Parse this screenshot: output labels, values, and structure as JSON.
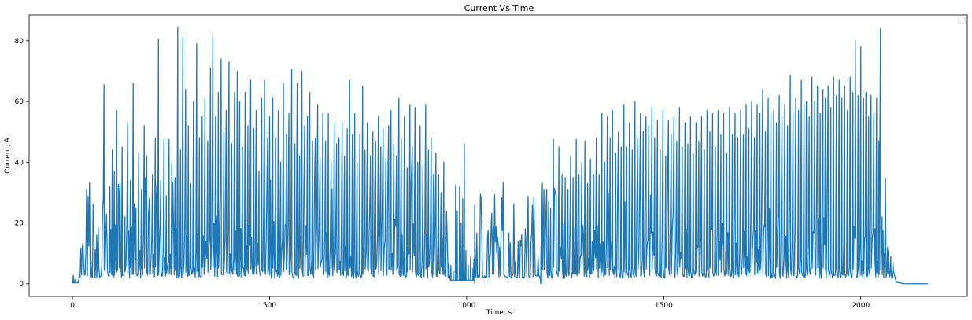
{
  "chart_data": {
    "type": "line",
    "title": "Current Vs Time",
    "xlabel": "Time, s",
    "ylabel": "Current, A",
    "xlim": [
      -110,
      2270
    ],
    "ylim": [
      -4.2,
      88.5
    ],
    "xticks": [
      0,
      500,
      1000,
      1500,
      2000
    ],
    "yticks": [
      0,
      20,
      40,
      60,
      80
    ],
    "grid": false,
    "legend": {
      "placement": "top-right",
      "entries": []
    },
    "series": [
      {
        "color": "#1f77b4",
        "segments": [
          {
            "x_start": 0,
            "x_end": 80,
            "pattern": "idle-small",
            "baseline": 0.3
          },
          {
            "x_start": 80,
            "x_end": 960,
            "pattern": "dense-spikes",
            "baseline": 2.5,
            "mid_band": [
              2,
              20
            ]
          },
          {
            "x_start": 960,
            "x_end": 1020,
            "pattern": "taper",
            "baseline": 1.0
          },
          {
            "x_start": 1020,
            "x_end": 1188,
            "pattern": "flat",
            "baseline": 0.0
          },
          {
            "x_start": 1188,
            "x_end": 2085,
            "pattern": "dense-spikes",
            "baseline": 2.5,
            "mid_band": [
              2,
              20
            ]
          },
          {
            "x_start": 2085,
            "x_end": 2170,
            "pattern": "flat",
            "baseline": 0.0
          }
        ],
        "peaks": [
          [
            2,
            2.8
          ],
          [
            6,
            1.5
          ],
          [
            15,
            1.2
          ],
          [
            80,
            65.5
          ],
          [
            82,
            18.5
          ],
          [
            88,
            12
          ],
          [
            95,
            32
          ],
          [
            101,
            44
          ],
          [
            106,
            37
          ],
          [
            112,
            57
          ],
          [
            118,
            29
          ],
          [
            126,
            45
          ],
          [
            133,
            22
          ],
          [
            140,
            53
          ],
          [
            147,
            34
          ],
          [
            154,
            66
          ],
          [
            161,
            25
          ],
          [
            168,
            43
          ],
          [
            175,
            31
          ],
          [
            182,
            52
          ],
          [
            188,
            42
          ],
          [
            195,
            28
          ],
          [
            203,
            36
          ],
          [
            210,
            48
          ],
          [
            218,
            80.5
          ],
          [
            224,
            34
          ],
          [
            232,
            47.5
          ],
          [
            238,
            29
          ],
          [
            245,
            47.5
          ],
          [
            252,
            40
          ],
          [
            260,
            35
          ],
          [
            267,
            84.5
          ],
          [
            274,
            44
          ],
          [
            280,
            81
          ],
          [
            287,
            64
          ],
          [
            294,
            52
          ],
          [
            300,
            33
          ],
          [
            307,
            60
          ],
          [
            315,
            79
          ],
          [
            322,
            48
          ],
          [
            329,
            55
          ],
          [
            336,
            61
          ],
          [
            343,
            47
          ],
          [
            350,
            71
          ],
          [
            356,
            81.5
          ],
          [
            363,
            55
          ],
          [
            370,
            63
          ],
          [
            377,
            74
          ],
          [
            384,
            50
          ],
          [
            390,
            57
          ],
          [
            397,
            73
          ],
          [
            404,
            46
          ],
          [
            411,
            63
          ],
          [
            418,
            70
          ],
          [
            424,
            60
          ],
          [
            431,
            45
          ],
          [
            438,
            63
          ],
          [
            445,
            52
          ],
          [
            452,
            67
          ],
          [
            460,
            51
          ],
          [
            466,
            57
          ],
          [
            473,
            37
          ],
          [
            480,
            61
          ],
          [
            487,
            67
          ],
          [
            495,
            48
          ],
          [
            500,
            55
          ],
          [
            508,
            61
          ],
          [
            515,
            48
          ],
          [
            522,
            57
          ],
          [
            528,
            40
          ],
          [
            535,
            66
          ],
          [
            543,
            49
          ],
          [
            549,
            56
          ],
          [
            556,
            70.5
          ],
          [
            564,
            46
          ],
          [
            570,
            66
          ],
          [
            576,
            42
          ],
          [
            582,
            70
          ],
          [
            589,
            52
          ],
          [
            596,
            55
          ],
          [
            602,
            63
          ],
          [
            609,
            47
          ],
          [
            616,
            48
          ],
          [
            622,
            59
          ],
          [
            628,
            41
          ],
          [
            635,
            56
          ],
          [
            642,
            47
          ],
          [
            649,
            56
          ],
          [
            656,
            40
          ],
          [
            664,
            53
          ],
          [
            670,
            46
          ],
          [
            676,
            48
          ],
          [
            684,
            53
          ],
          [
            690,
            42
          ],
          [
            697,
            51
          ],
          [
            703,
            67
          ],
          [
            710,
            49
          ],
          [
            716,
            56
          ],
          [
            722,
            40
          ],
          [
            729,
            49
          ],
          [
            736,
            65
          ],
          [
            742,
            44
          ],
          [
            748,
            53
          ],
          [
            756,
            42
          ],
          [
            762,
            50
          ],
          [
            769,
            47
          ],
          [
            776,
            55
          ],
          [
            782,
            45
          ],
          [
            788,
            51
          ],
          [
            795,
            41
          ],
          [
            802,
            52
          ],
          [
            808,
            57
          ],
          [
            815,
            46
          ],
          [
            822,
            42
          ],
          [
            828,
            61
          ],
          [
            834,
            48
          ],
          [
            842,
            55
          ],
          [
            849,
            38
          ],
          [
            856,
            59
          ],
          [
            862,
            45
          ],
          [
            869,
            58
          ],
          [
            876,
            40
          ],
          [
            882,
            52
          ],
          [
            889,
            38
          ],
          [
            896,
            59
          ],
          [
            903,
            44
          ],
          [
            910,
            48
          ],
          [
            916,
            36
          ],
          [
            922,
            43
          ],
          [
            929,
            36
          ],
          [
            935,
            30
          ],
          [
            942,
            40
          ],
          [
            955,
            7
          ],
          [
            960,
            6
          ],
          [
            966,
            4
          ],
          [
            972,
            32.5
          ],
          [
            976,
            24
          ],
          [
            982,
            32
          ],
          [
            986,
            20
          ],
          [
            990,
            28
          ],
          [
            994,
            46
          ],
          [
            998,
            11
          ],
          [
            1004,
            6
          ],
          [
            1010,
            9
          ],
          [
            1016,
            5
          ],
          [
            1192,
            33
          ],
          [
            1196,
            31
          ],
          [
            1203,
            31
          ],
          [
            1208,
            27
          ],
          [
            1213,
            25
          ],
          [
            1220,
            47.5
          ],
          [
            1227,
            29
          ],
          [
            1234,
            45
          ],
          [
            1242,
            36
          ],
          [
            1250,
            35
          ],
          [
            1257,
            31
          ],
          [
            1264,
            42
          ],
          [
            1270,
            35
          ],
          [
            1278,
            47.5
          ],
          [
            1285,
            36
          ],
          [
            1292,
            40
          ],
          [
            1300,
            47
          ],
          [
            1307,
            33
          ],
          [
            1314,
            41
          ],
          [
            1322,
            36
          ],
          [
            1329,
            48
          ],
          [
            1336,
            36
          ],
          [
            1343,
            56
          ],
          [
            1350,
            40
          ],
          [
            1357,
            55
          ],
          [
            1364,
            48
          ],
          [
            1370,
            57
          ],
          [
            1378,
            43
          ],
          [
            1385,
            50
          ],
          [
            1392,
            45
          ],
          [
            1399,
            59
          ],
          [
            1406,
            45
          ],
          [
            1413,
            53
          ],
          [
            1420,
            44
          ],
          [
            1427,
            60
          ],
          [
            1434,
            48
          ],
          [
            1441,
            56
          ],
          [
            1448,
            50
          ],
          [
            1455,
            55
          ],
          [
            1462,
            52
          ],
          [
            1470,
            58
          ],
          [
            1477,
            48
          ],
          [
            1484,
            54
          ],
          [
            1491,
            44
          ],
          [
            1498,
            57
          ],
          [
            1505,
            42
          ],
          [
            1512,
            54
          ],
          [
            1519,
            49
          ],
          [
            1526,
            55
          ],
          [
            1533,
            47
          ],
          [
            1540,
            58
          ],
          [
            1547,
            45
          ],
          [
            1554,
            53
          ],
          [
            1561,
            46
          ],
          [
            1568,
            55
          ],
          [
            1575,
            43
          ],
          [
            1582,
            53
          ],
          [
            1589,
            47
          ],
          [
            1596,
            55
          ],
          [
            1603,
            44
          ],
          [
            1610,
            57
          ],
          [
            1617,
            50
          ],
          [
            1624,
            56
          ],
          [
            1631,
            45
          ],
          [
            1638,
            57
          ],
          [
            1645,
            49
          ],
          [
            1652,
            56
          ],
          [
            1660,
            43
          ],
          [
            1667,
            58
          ],
          [
            1674,
            49
          ],
          [
            1681,
            56
          ],
          [
            1688,
            48
          ],
          [
            1695,
            57
          ],
          [
            1702,
            49
          ],
          [
            1709,
            59
          ],
          [
            1716,
            51
          ],
          [
            1723,
            60
          ],
          [
            1730,
            48
          ],
          [
            1737,
            59
          ],
          [
            1744,
            56
          ],
          [
            1751,
            64
          ],
          [
            1758,
            50
          ],
          [
            1765,
            61
          ],
          [
            1772,
            56
          ],
          [
            1779,
            57
          ],
          [
            1786,
            53
          ],
          [
            1793,
            62
          ],
          [
            1800,
            55
          ],
          [
            1807,
            59
          ],
          [
            1814,
            52
          ],
          [
            1821,
            68.5
          ],
          [
            1828,
            56
          ],
          [
            1835,
            61
          ],
          [
            1842,
            57
          ],
          [
            1849,
            67
          ],
          [
            1856,
            59
          ],
          [
            1862,
            60
          ],
          [
            1869,
            55
          ],
          [
            1876,
            68
          ],
          [
            1883,
            60
          ],
          [
            1890,
            65
          ],
          [
            1897,
            56
          ],
          [
            1904,
            64
          ],
          [
            1910,
            61
          ],
          [
            1917,
            65
          ],
          [
            1924,
            58
          ],
          [
            1931,
            68
          ],
          [
            1938,
            62
          ],
          [
            1945,
            67
          ],
          [
            1952,
            61
          ],
          [
            1959,
            65
          ],
          [
            1966,
            57
          ],
          [
            1973,
            68
          ],
          [
            1980,
            63
          ],
          [
            1987,
            80
          ],
          [
            1993,
            62
          ],
          [
            2000,
            78
          ],
          [
            2007,
            61
          ],
          [
            2013,
            63
          ],
          [
            2020,
            55
          ],
          [
            2026,
            62
          ],
          [
            2033,
            56
          ],
          [
            2040,
            61
          ],
          [
            2046,
            47
          ],
          [
            2050,
            84
          ],
          [
            2054,
            22
          ],
          [
            2060,
            10
          ],
          [
            2068,
            12
          ],
          [
            2076,
            9
          ],
          [
            2082,
            7
          ]
        ]
      }
    ]
  }
}
